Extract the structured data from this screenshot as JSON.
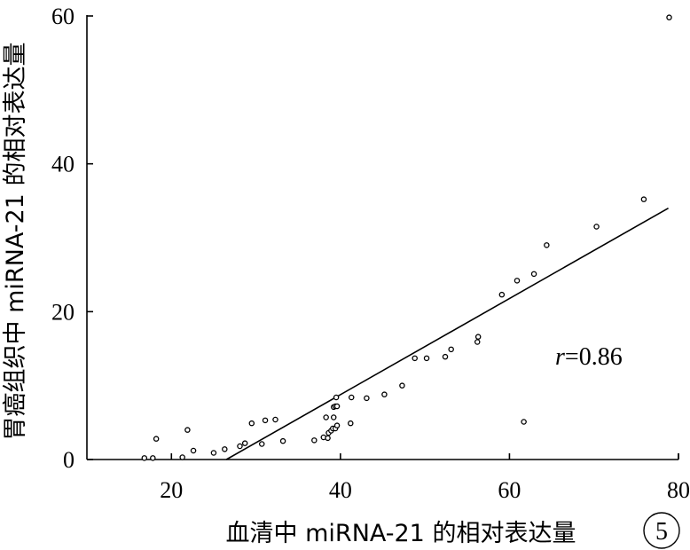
{
  "chart_data": {
    "type": "scatter",
    "xlabel": "血清中 miRNA-21 的相对表达量",
    "ylabel": "胃癌组织中 miRNA-21 的相对表达量",
    "xlim": [
      10,
      80
    ],
    "ylim": [
      0,
      60
    ],
    "xticks": [
      "20",
      "40",
      "60",
      "80"
    ],
    "yticks": [
      "0",
      "20",
      "40",
      "60"
    ],
    "grid": false,
    "annotation": {
      "italic": "r",
      "rest": "=0.86"
    },
    "panel_label": "5",
    "trendline": {
      "x": [
        26.5,
        78.8
      ],
      "y": [
        0,
        34
      ]
    },
    "points": [
      {
        "x": 16.8,
        "y": 0.2
      },
      {
        "x": 17.8,
        "y": 0.2
      },
      {
        "x": 18.2,
        "y": 2.8
      },
      {
        "x": 21.3,
        "y": 0.3
      },
      {
        "x": 21.9,
        "y": 4.0
      },
      {
        "x": 22.6,
        "y": 1.2
      },
      {
        "x": 25.0,
        "y": 0.9
      },
      {
        "x": 26.3,
        "y": 1.4
      },
      {
        "x": 28.1,
        "y": 1.8
      },
      {
        "x": 28.7,
        "y": 2.2
      },
      {
        "x": 29.5,
        "y": 4.9
      },
      {
        "x": 30.7,
        "y": 2.1
      },
      {
        "x": 31.1,
        "y": 5.3
      },
      {
        "x": 32.3,
        "y": 5.4
      },
      {
        "x": 33.2,
        "y": 2.5
      },
      {
        "x": 36.9,
        "y": 2.6
      },
      {
        "x": 38.0,
        "y": 3.0
      },
      {
        "x": 38.3,
        "y": 5.7
      },
      {
        "x": 38.5,
        "y": 2.9
      },
      {
        "x": 38.6,
        "y": 3.6
      },
      {
        "x": 38.9,
        "y": 3.9
      },
      {
        "x": 39.1,
        "y": 4.2
      },
      {
        "x": 39.4,
        "y": 4.2
      },
      {
        "x": 39.2,
        "y": 5.7
      },
      {
        "x": 39.6,
        "y": 4.6
      },
      {
        "x": 39.2,
        "y": 7.1
      },
      {
        "x": 39.4,
        "y": 7.2
      },
      {
        "x": 39.6,
        "y": 7.2
      },
      {
        "x": 39.5,
        "y": 8.4
      },
      {
        "x": 41.2,
        "y": 4.9
      },
      {
        "x": 41.3,
        "y": 8.4
      },
      {
        "x": 43.1,
        "y": 8.3
      },
      {
        "x": 45.2,
        "y": 8.8
      },
      {
        "x": 47.3,
        "y": 10.0
      },
      {
        "x": 48.8,
        "y": 13.7
      },
      {
        "x": 50.2,
        "y": 13.7
      },
      {
        "x": 52.4,
        "y": 13.9
      },
      {
        "x": 53.1,
        "y": 14.9
      },
      {
        "x": 56.2,
        "y": 15.9
      },
      {
        "x": 56.3,
        "y": 16.6
      },
      {
        "x": 59.1,
        "y": 22.3
      },
      {
        "x": 60.9,
        "y": 24.2
      },
      {
        "x": 61.7,
        "y": 5.1
      },
      {
        "x": 62.9,
        "y": 25.1
      },
      {
        "x": 64.4,
        "y": 29.0
      },
      {
        "x": 70.3,
        "y": 31.5
      },
      {
        "x": 75.9,
        "y": 35.2
      },
      {
        "x": 78.9,
        "y": 59.8
      }
    ]
  }
}
